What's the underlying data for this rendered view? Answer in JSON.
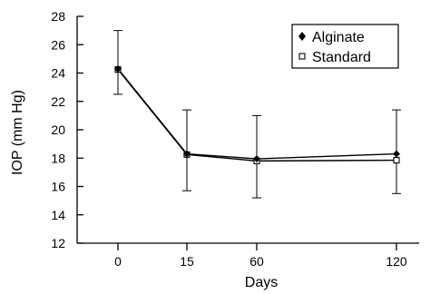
{
  "chart_data": {
    "type": "line",
    "title": "",
    "xlabel": "Days",
    "ylabel": "IOP (mm Hg)",
    "categories": [
      "0",
      "15",
      "60",
      "120"
    ],
    "ylim": [
      12,
      28
    ],
    "yticks": [
      "12",
      "14",
      "16",
      "18",
      "20",
      "22",
      "24",
      "26",
      "28"
    ],
    "grid": false,
    "legend_position": "top-right",
    "series": [
      {
        "name": "Alginate",
        "marker": "filled-diamond",
        "color": "#000000",
        "values": [
          24.3,
          18.3,
          17.95,
          18.3
        ],
        "error_upper": [
          27.0,
          21.4,
          21.0,
          21.4
        ],
        "error_lower": [
          22.5,
          15.7,
          15.2,
          15.5
        ]
      },
      {
        "name": "Standard",
        "marker": "open-square",
        "color": "#000000",
        "values": [
          24.25,
          18.25,
          17.8,
          17.85
        ]
      }
    ]
  }
}
